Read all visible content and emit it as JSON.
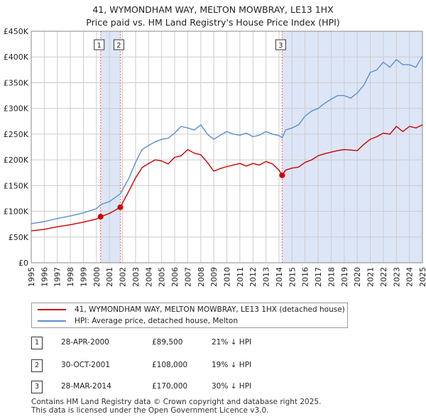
{
  "title_line1": "41, WYMONDHAM WAY, MELTON MOWBRAY, LE13 1HX",
  "title_line2": "Price paid vs. HM Land Registry's House Price Index (HPI)",
  "legend": {
    "property_label": "41, WYMONDHAM WAY, MELTON MOWBRAY, LE13 1HX (detached house)",
    "hpi_label": "HPI: Average price, detached house, Melton"
  },
  "sales": [
    {
      "num": "1",
      "date": "28-APR-2000",
      "price": "£89,500",
      "hpi": "21% ↓ HPI"
    },
    {
      "num": "2",
      "date": "30-OCT-2001",
      "price": "£108,000",
      "hpi": "19% ↓ HPI"
    },
    {
      "num": "3",
      "date": "28-MAR-2014",
      "price": "£170,000",
      "hpi": "30% ↓ HPI"
    }
  ],
  "footer": {
    "line1": "Contains HM Land Registry data © Crown copyright and database right 2025.",
    "line2": "This data is licensed under the Open Government Licence v3.0."
  },
  "colors": {
    "property": "#cc0000",
    "hpi": "#5b8fd0",
    "shade": "#dde6f7",
    "grid": "#cccccc",
    "marker_line": "#e06666"
  },
  "chart_data": {
    "type": "line",
    "title": "Price paid vs. HM Land Registry's House Price Index (HPI)",
    "xlabel": "",
    "ylabel": "",
    "xlim": [
      1995,
      2025
    ],
    "ylim": [
      0,
      450000
    ],
    "x_ticks": [
      1995,
      1996,
      1997,
      1998,
      1999,
      2000,
      2001,
      2002,
      2003,
      2004,
      2005,
      2006,
      2007,
      2008,
      2009,
      2010,
      2011,
      2012,
      2013,
      2014,
      2015,
      2016,
      2017,
      2018,
      2019,
      2020,
      2021,
      2022,
      2023,
      2024,
      2025
    ],
    "y_ticks": [
      0,
      50000,
      100000,
      150000,
      200000,
      250000,
      300000,
      350000,
      400000,
      450000
    ],
    "y_tick_labels": [
      "£0",
      "£50K",
      "£100K",
      "£150K",
      "£200K",
      "£250K",
      "£300K",
      "£350K",
      "£400K",
      "£450K"
    ],
    "shaded_ranges": [
      [
        2000.32,
        2001.83
      ],
      [
        2014.24,
        2025.0
      ]
    ],
    "series": [
      {
        "name": "41, WYMONDHAM WAY, MELTON MOWBRAY, LE13 1HX (detached house)",
        "x": [
          1995.0,
          1996.0,
          1997.0,
          1998.0,
          1999.0,
          2000.0,
          2000.32,
          2001.0,
          2001.83,
          2002.5,
          2003.0,
          2003.5,
          2004.0,
          2004.5,
          2005.0,
          2005.5,
          2006.0,
          2006.5,
          2007.0,
          2007.5,
          2008.0,
          2008.5,
          2009.0,
          2009.5,
          2010.0,
          2010.5,
          2011.0,
          2011.5,
          2012.0,
          2012.5,
          2013.0,
          2013.5,
          2014.0,
          2014.24,
          2014.5,
          2015.0,
          2015.5,
          2016.0,
          2016.5,
          2017.0,
          2017.5,
          2018.0,
          2018.5,
          2019.0,
          2019.5,
          2020.0,
          2020.5,
          2021.0,
          2021.5,
          2022.0,
          2022.5,
          2023.0,
          2023.5,
          2024.0,
          2024.5,
          2025.0
        ],
        "values": [
          62000,
          65000,
          70000,
          74000,
          79000,
          85000,
          89500,
          96000,
          108000,
          140000,
          165000,
          185000,
          193000,
          200000,
          198000,
          192000,
          205000,
          208000,
          220000,
          213000,
          210000,
          195000,
          178000,
          183000,
          187000,
          190000,
          193000,
          188000,
          193000,
          190000,
          197000,
          192000,
          180000,
          170000,
          180000,
          184000,
          186000,
          195000,
          200000,
          208000,
          212000,
          215000,
          218000,
          220000,
          219000,
          218000,
          230000,
          240000,
          245000,
          252000,
          250000,
          265000,
          255000,
          265000,
          262000,
          268000
        ]
      },
      {
        "name": "HPI: Average price, detached house, Melton",
        "x": [
          1995.0,
          1996.0,
          1997.0,
          1998.0,
          1999.0,
          2000.0,
          2000.32,
          2001.0,
          2001.83,
          2002.5,
          2003.0,
          2003.5,
          2004.0,
          2004.5,
          2005.0,
          2005.5,
          2006.0,
          2006.5,
          2007.0,
          2007.5,
          2008.0,
          2008.5,
          2009.0,
          2009.5,
          2010.0,
          2010.5,
          2011.0,
          2011.5,
          2012.0,
          2012.5,
          2013.0,
          2013.5,
          2014.0,
          2014.24,
          2014.5,
          2015.0,
          2015.5,
          2016.0,
          2016.5,
          2017.0,
          2017.5,
          2018.0,
          2018.5,
          2019.0,
          2019.5,
          2020.0,
          2020.5,
          2021.0,
          2021.5,
          2022.0,
          2022.5,
          2023.0,
          2023.5,
          2024.0,
          2024.5,
          2025.0
        ],
        "values": [
          76000,
          80000,
          86000,
          91000,
          97000,
          105000,
          113000,
          119000,
          134000,
          165000,
          195000,
          220000,
          228000,
          235000,
          240000,
          242000,
          252000,
          265000,
          262000,
          258000,
          268000,
          250000,
          240000,
          248000,
          255000,
          250000,
          248000,
          252000,
          245000,
          248000,
          255000,
          250000,
          247000,
          243000,
          258000,
          262000,
          268000,
          285000,
          295000,
          300000,
          310000,
          318000,
          325000,
          325000,
          320000,
          330000,
          345000,
          370000,
          375000,
          390000,
          380000,
          395000,
          385000,
          385000,
          380000,
          402000
        ]
      }
    ],
    "annotations": [
      {
        "label": "1",
        "x": 2000.32,
        "value": 89500
      },
      {
        "label": "2",
        "x": 2001.83,
        "value": 108000
      },
      {
        "label": "3",
        "x": 2014.24,
        "value": 170000
      }
    ]
  }
}
